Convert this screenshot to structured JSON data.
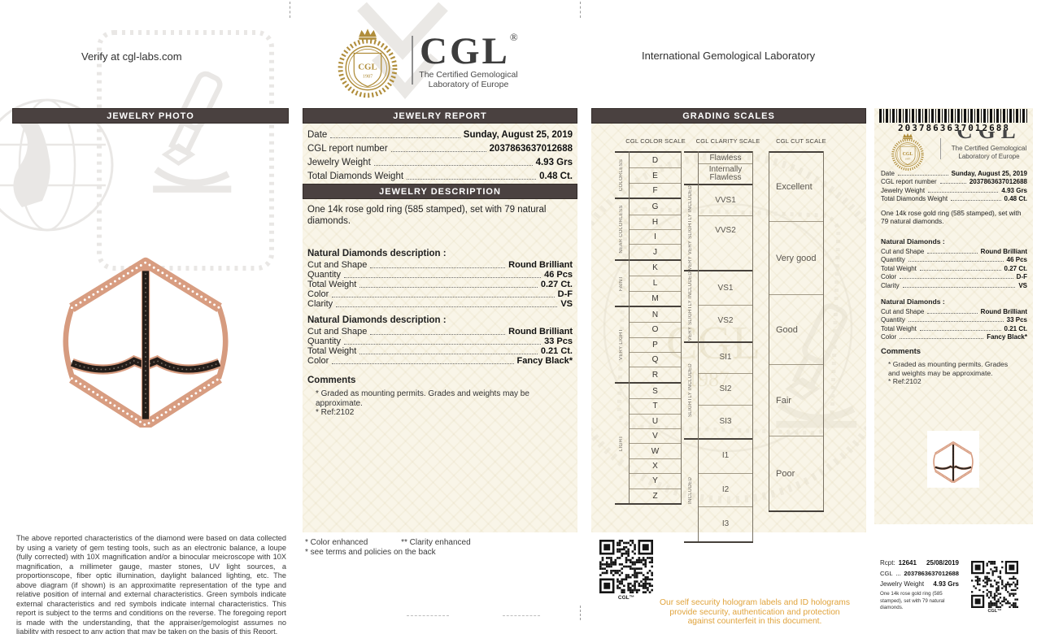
{
  "colors": {
    "header_bar": "#4a4140",
    "panel_bg": "#f9f5e8",
    "gold": "#b08d3a",
    "security": "#e0a33c",
    "rose_gold": "#d89d81"
  },
  "header": {
    "verify_text": "Verify at cgl-labs.com",
    "intl_text": "International Gemological Laboratory"
  },
  "logo": {
    "brand": "CGL",
    "reg": "®",
    "tagline1": "The Certified Gemological",
    "tagline2": "Laboratory of Europe"
  },
  "photo_panel": {
    "header": "JEWELRY PHOTO",
    "fine_print": "The above reported characteristics of the diamond were based on data collected by using a variety of gem testing tools, such as an electronic balance, a loupe (fully corrected) with 10X magnification and/or a binocular meicroscope with 10X magnification, a millimeter gauge, master stones, UV light sources, a proportionscope, fiber optic illumination, daylight balanced lighting, etc. The above diagram (if shown) is an approximatite representation of the type and relative position of internal and external characteristics. Green symbols indicate external characteristics and red symbols indicate internal characteristics. This report is subject to the terms and conditions on the reverse. The foregoing report is made with the understanding, that the appraiser/gemologist assumes no liability with respect to any action that may be taken on the basis of this Report."
  },
  "report_panel": {
    "header": "JEWELRY REPORT",
    "rows": [
      {
        "label": "Date",
        "value": "Sunday, August 25, 2019"
      },
      {
        "label": "CGL report number",
        "value": "2037863637012688"
      },
      {
        "label": "Jewelry Weight",
        "value": "4.93 Grs"
      },
      {
        "label": "Total Diamonds Weight",
        "value": "0.48 Ct."
      }
    ],
    "description_header": "JEWELRY DESCRIPTION",
    "description": "One 14k rose gold ring (585 stamped), set with 79 natural diamonds.",
    "diamonds": [
      {
        "title": "Natural Diamonds description :",
        "rows": [
          {
            "label": "Cut and Shape",
            "value": "Round Brilliant"
          },
          {
            "label": "Quantity",
            "value": "46 Pcs"
          },
          {
            "label": "Total Weight",
            "value": "0.27 Ct."
          },
          {
            "label": "Color",
            "value": "D-F"
          },
          {
            "label": "Clarity",
            "value": "VS"
          }
        ]
      },
      {
        "title": "Natural Diamonds description :",
        "rows": [
          {
            "label": "Cut and Shape",
            "value": "Round Brilliant"
          },
          {
            "label": "Quantity",
            "value": "33 Pcs"
          },
          {
            "label": "Total Weight",
            "value": "0.21 Ct."
          },
          {
            "label": "Color",
            "value": "Fancy Black*"
          }
        ]
      }
    ],
    "comments_title": "Comments",
    "comments": [
      "* Graded as mounting permits. Grades and weights may be approximate.",
      "* Ref:2102"
    ],
    "footnote_color": "* Color enhanced",
    "footnote_clarity": "** Clarity enhanced",
    "footnote_terms": "* see terms and policies on the back"
  },
  "grading_panel": {
    "header": "GRADING SCALES",
    "color_scale": {
      "title": "CGL COLOR SCALE",
      "groups": [
        {
          "label": "COLORLESS",
          "grades": [
            "D",
            "E",
            "F"
          ]
        },
        {
          "label": "NEAR COLORLESS",
          "grades": [
            "G",
            "H",
            "I",
            "J"
          ]
        },
        {
          "label": "FAINT",
          "grades": [
            "K",
            "L",
            "M"
          ]
        },
        {
          "label": "VERY LIGHT",
          "grades": [
            "N",
            "O",
            "P",
            "Q",
            "R"
          ]
        },
        {
          "label": "LIGHT",
          "grades": [
            "S",
            "T",
            "U",
            "V",
            "W",
            "X",
            "Y",
            "Z"
          ]
        }
      ]
    },
    "clarity_scale": {
      "title": "CGL CLARITY SCALE",
      "groups": [
        {
          "label": "",
          "grades": [
            "Flawless",
            "Internally Flawless"
          ]
        },
        {
          "label": "VERY VERY SLIGHTLY INCLUDED",
          "grades": [
            "VVS1",
            "VVS2"
          ]
        },
        {
          "label": "VERY SLIGHTLY INCLUDED",
          "grades": [
            "VS1",
            "VS2"
          ]
        },
        {
          "label": "SLIGHTLY INCLUDED",
          "grades": [
            "SI1",
            "SI2",
            "SI3"
          ]
        },
        {
          "label": "INCLUDED",
          "grades": [
            "I1",
            "I2",
            "I3"
          ]
        }
      ]
    },
    "cut_scale": {
      "title": "CGL CUT SCALE",
      "grades": [
        "Excellent",
        "Very good",
        "Good",
        "Fair",
        "Poor"
      ]
    }
  },
  "security": {
    "qr_caption": "CGL™",
    "notice": "Our self security hologram labels and ID holograms provide security, authentication and protection against counterfeit in this document."
  },
  "stub": {
    "barcode_number": "2037863637012688",
    "brand": "CGL",
    "rows": [
      {
        "label": "Date",
        "value": "Sunday, August 25, 2019"
      },
      {
        "label": "CGL report number",
        "value": "2037863637012688"
      },
      {
        "label": "Jewelry Weight",
        "value": "4.93 Grs"
      },
      {
        "label": "Total Diamonds Weight",
        "value": "0.48 Ct."
      }
    ],
    "description": "One 14k rose gold ring (585 stamped), set with 79 natural diamonds.",
    "diamonds": [
      {
        "title": "Natural Diamonds :",
        "rows": [
          {
            "label": "Cut and Shape",
            "value": "Round Brilliant"
          },
          {
            "label": "Quantity",
            "value": "46 Pcs"
          },
          {
            "label": "Total Weight",
            "value": "0.27 Ct."
          },
          {
            "label": "Color",
            "value": "D-F"
          },
          {
            "label": "Clarity",
            "value": "VS"
          }
        ]
      },
      {
        "title": "Natural Diamonds :",
        "rows": [
          {
            "label": "Cut and Shape",
            "value": "Round Brilliant"
          },
          {
            "label": "Quantity",
            "value": "33 Pcs"
          },
          {
            "label": "Total Weight",
            "value": "0.21 Ct."
          },
          {
            "label": "Color",
            "value": "Fancy Black*"
          }
        ]
      }
    ],
    "comments_title": "Comments",
    "comments": [
      "* Graded as mounting permits. Grades and weights may be approximate.",
      "* Ref:2102"
    ],
    "receipt": {
      "rcpt_label": "Rcpt:",
      "rcpt_no": "12641",
      "date": "25/08/2019",
      "cgl_label": "CGL",
      "cgl_no": "2037863637012688",
      "jw_label": "Jewelry Weight",
      "jw_value": "4.93 Grs",
      "description": "One 14k rose gold ring (585 stamped), set with 79 natural diamonds.",
      "qr_caption": "CGL™"
    }
  }
}
